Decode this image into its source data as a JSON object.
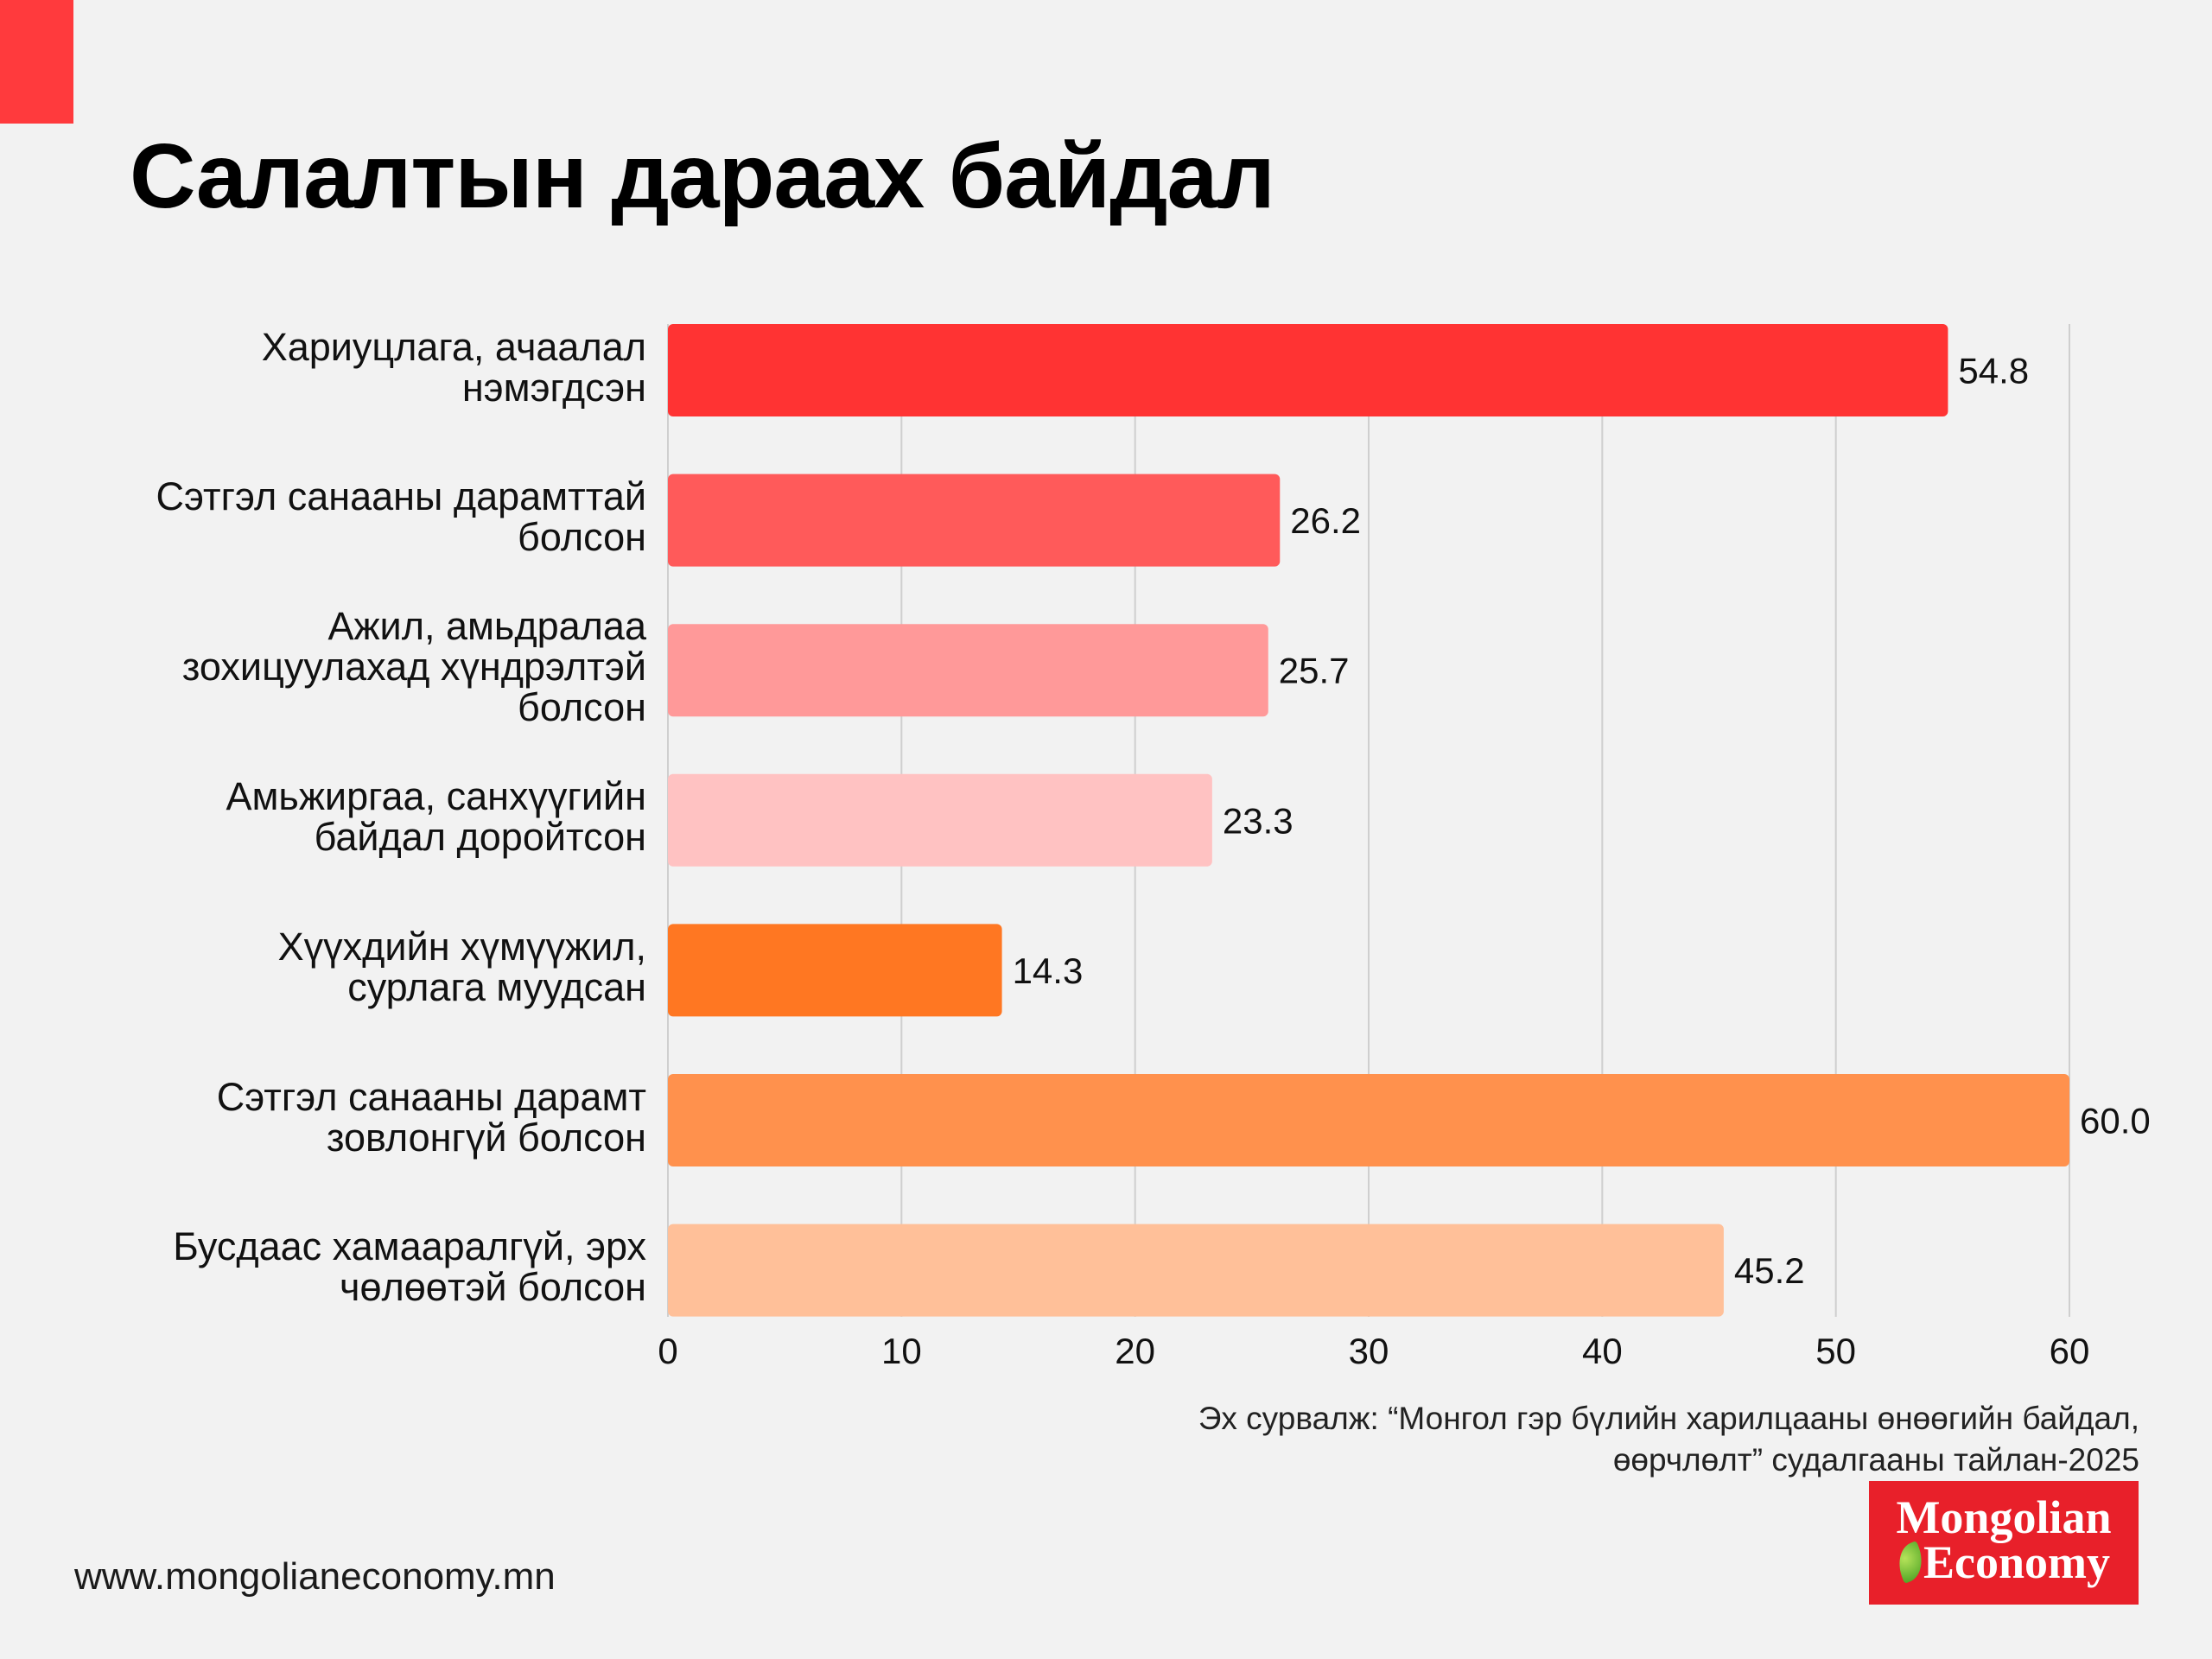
{
  "header": {
    "title": "Салалтын дараах байдал",
    "accent_color": "#FF3A3D"
  },
  "chart_data": {
    "type": "bar",
    "orientation": "horizontal",
    "title": "Салалтын дараах байдал",
    "xlabel": "",
    "ylabel": "",
    "xlim": [
      0,
      60
    ],
    "x_ticks": [
      0,
      10,
      20,
      30,
      40,
      50,
      60
    ],
    "grid": "vertical",
    "categories": [
      "Хариуцлага, ачаалал\nнэмэгдсэн",
      "Сэтгэл санааны дарамттай\nболсон",
      "Ажил, амьдралаа\nзохицуулахад хүндрэлтэй\nболсон",
      "Амьжиргаа, санхүүгийн\nбайдал доройтсон",
      "Хүүхдийн хүмүүжил,\nсурлага муудсан",
      "Сэтгэл санааны дарамт\nзовлонгүй болсон",
      "Бусдаас хамааралгүй, эрх\nчөлөөтэй болсон"
    ],
    "values": [
      54.8,
      26.2,
      25.7,
      23.3,
      14.3,
      60.0,
      45.2
    ],
    "value_labels": [
      "54.8",
      "26.2",
      "25.7",
      "23.3",
      "14.3",
      "60.0",
      "45.2"
    ],
    "colors": [
      "#FF3333",
      "#FF5A5A",
      "#FF9999",
      "#FFC2C2",
      "#FF7722",
      "#FF914D",
      "#FFC099"
    ]
  },
  "footer": {
    "source": "Эх сурвалж: “Монгол гэр бүлийн харилцааны өнөөгийн байдал,\nөөрчлөлт” судалгааны тайлан-2025",
    "website": "www.mongolianeconomy.mn",
    "logo_line1": "Mongolian",
    "logo_line2": "Economy",
    "logo_icon": "leaf-icon"
  }
}
